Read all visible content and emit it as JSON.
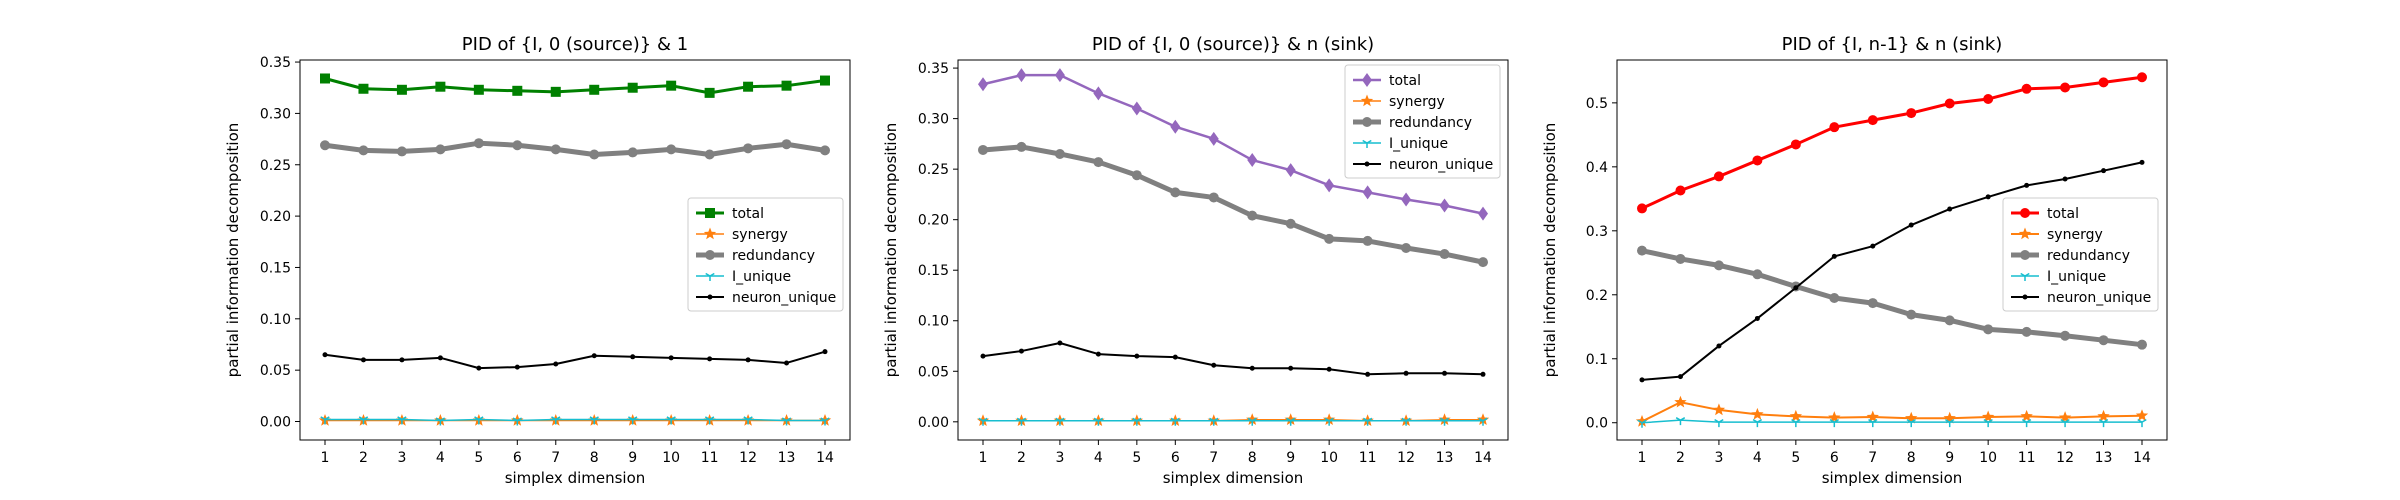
{
  "chart_data": [
    {
      "type": "line",
      "title": "PID of {I, 0 (source)} & 1",
      "xlabel": "simplex dimension",
      "ylabel": "partial information decomposition",
      "x": [
        1,
        2,
        3,
        4,
        5,
        6,
        7,
        8,
        9,
        10,
        11,
        12,
        13,
        14
      ],
      "xticks": [
        "1",
        "2",
        "3",
        "4",
        "5",
        "6",
        "7",
        "8",
        "9",
        "10",
        "11",
        "12",
        "13",
        "14"
      ],
      "ylim": [
        -0.018,
        0.352
      ],
      "yticks": [
        0,
        0.05,
        0.1,
        0.15,
        0.2,
        0.25,
        0.3,
        0.35
      ],
      "yticklabels": [
        "0.00",
        "0.05",
        "0.10",
        "0.15",
        "0.20",
        "0.25",
        "0.30",
        "0.35"
      ],
      "grid": false,
      "legend_position": "center-right",
      "series": [
        {
          "name": "total",
          "color": "#008000",
          "marker": "square",
          "width": 3,
          "values": [
            0.334,
            0.324,
            0.323,
            0.326,
            0.323,
            0.322,
            0.321,
            0.323,
            0.325,
            0.327,
            0.32,
            0.326,
            0.327,
            0.332
          ]
        },
        {
          "name": "synergy",
          "color": "#ff7f0e",
          "marker": "star",
          "width": 1.5,
          "values": [
            0.001,
            0.001,
            0.001,
            0.001,
            0.001,
            0.001,
            0.001,
            0.001,
            0.001,
            0.001,
            0.001,
            0.001,
            0.001,
            0.001
          ]
        },
        {
          "name": "redundancy",
          "color": "#808080",
          "marker": "circle",
          "width": 5,
          "values": [
            0.269,
            0.264,
            0.263,
            0.265,
            0.271,
            0.269,
            0.265,
            0.26,
            0.262,
            0.265,
            0.26,
            0.266,
            0.27,
            0.264
          ]
        },
        {
          "name": "I_unique",
          "color": "#17becf",
          "marker": "tri",
          "width": 1.5,
          "values": [
            0.002,
            0.002,
            0.002,
            0.001,
            0.002,
            0.001,
            0.002,
            0.002,
            0.002,
            0.002,
            0.002,
            0.002,
            0.001,
            0.001
          ]
        },
        {
          "name": "neuron_unique",
          "color": "#000000",
          "marker": "dot",
          "width": 2,
          "values": [
            0.065,
            0.06,
            0.06,
            0.062,
            0.052,
            0.053,
            0.056,
            0.064,
            0.063,
            0.062,
            0.061,
            0.06,
            0.057,
            0.068
          ]
        }
      ]
    },
    {
      "type": "line",
      "title": "PID of {I, 0 (source)} & n (sink)",
      "xlabel": "simplex dimension",
      "ylabel": "partial information decomposition",
      "x": [
        1,
        2,
        3,
        4,
        5,
        6,
        7,
        8,
        9,
        10,
        11,
        12,
        13,
        14
      ],
      "xticks": [
        "1",
        "2",
        "3",
        "4",
        "5",
        "6",
        "7",
        "8",
        "9",
        "10",
        "11",
        "12",
        "13",
        "14"
      ],
      "ylim": [
        -0.018,
        0.358
      ],
      "yticks": [
        0,
        0.05,
        0.1,
        0.15,
        0.2,
        0.25,
        0.3,
        0.35
      ],
      "yticklabels": [
        "0.00",
        "0.05",
        "0.10",
        "0.15",
        "0.20",
        "0.25",
        "0.30",
        "0.35"
      ],
      "grid": false,
      "legend_position": "top-right",
      "series": [
        {
          "name": "total",
          "color": "#9467bd",
          "marker": "diamond",
          "width": 2.5,
          "values": [
            0.334,
            0.343,
            0.343,
            0.325,
            0.31,
            0.292,
            0.28,
            0.259,
            0.249,
            0.234,
            0.227,
            0.22,
            0.214,
            0.206
          ]
        },
        {
          "name": "synergy",
          "color": "#ff7f0e",
          "marker": "star",
          "width": 1.5,
          "values": [
            0.001,
            0.001,
            0.001,
            0.001,
            0.001,
            0.001,
            0.001,
            0.002,
            0.002,
            0.002,
            0.001,
            0.001,
            0.002,
            0.002
          ]
        },
        {
          "name": "redundancy",
          "color": "#808080",
          "marker": "circle",
          "width": 5,
          "values": [
            0.269,
            0.272,
            0.265,
            0.257,
            0.244,
            0.227,
            0.222,
            0.204,
            0.196,
            0.181,
            0.179,
            0.172,
            0.166,
            0.158
          ]
        },
        {
          "name": "I_unique",
          "color": "#17becf",
          "marker": "tri",
          "width": 1.5,
          "values": [
            0.001,
            0.001,
            0.001,
            0.001,
            0.001,
            0.001,
            0.001,
            0.001,
            0.001,
            0.001,
            0.001,
            0.001,
            0.001,
            0.001
          ]
        },
        {
          "name": "neuron_unique",
          "color": "#000000",
          "marker": "dot",
          "width": 2,
          "values": [
            0.065,
            0.07,
            0.078,
            0.067,
            0.065,
            0.064,
            0.056,
            0.053,
            0.053,
            0.052,
            0.047,
            0.048,
            0.048,
            0.047
          ]
        }
      ]
    },
    {
      "type": "line",
      "title": "PID of {I, n-1} & n (sink)",
      "xlabel": "simplex dimension",
      "ylabel": "partial information decomposition",
      "x": [
        1,
        2,
        3,
        4,
        5,
        6,
        7,
        8,
        9,
        10,
        11,
        12,
        13,
        14
      ],
      "xticks": [
        "1",
        "2",
        "3",
        "4",
        "5",
        "6",
        "7",
        "8",
        "9",
        "10",
        "11",
        "12",
        "13",
        "14"
      ],
      "ylim": [
        -0.027,
        0.567
      ],
      "yticks": [
        0,
        0.1,
        0.2,
        0.3,
        0.4,
        0.5
      ],
      "yticklabels": [
        "0.0",
        "0.1",
        "0.2",
        "0.3",
        "0.4",
        "0.5"
      ],
      "grid": false,
      "legend_position": "center-right",
      "series": [
        {
          "name": "total",
          "color": "#ff0000",
          "marker": "circle",
          "width": 3,
          "values": [
            0.335,
            0.363,
            0.385,
            0.41,
            0.435,
            0.462,
            0.473,
            0.484,
            0.499,
            0.506,
            0.522,
            0.524,
            0.532,
            0.54
          ]
        },
        {
          "name": "synergy",
          "color": "#ff7f0e",
          "marker": "star",
          "width": 2,
          "values": [
            0.002,
            0.032,
            0.02,
            0.013,
            0.01,
            0.008,
            0.009,
            0.007,
            0.007,
            0.009,
            0.01,
            0.008,
            0.01,
            0.011
          ]
        },
        {
          "name": "redundancy",
          "color": "#808080",
          "marker": "circle",
          "width": 5,
          "values": [
            0.269,
            0.256,
            0.246,
            0.232,
            0.213,
            0.195,
            0.187,
            0.169,
            0.16,
            0.146,
            0.142,
            0.136,
            0.129,
            0.122
          ]
        },
        {
          "name": "I_unique",
          "color": "#17becf",
          "marker": "tri",
          "width": 1.5,
          "values": [
            0.0,
            0.004,
            0.001,
            0.001,
            0.001,
            0.001,
            0.001,
            0.001,
            0.001,
            0.001,
            0.001,
            0.001,
            0.001,
            0.001
          ]
        },
        {
          "name": "neuron_unique",
          "color": "#000000",
          "marker": "dot",
          "width": 2,
          "values": [
            0.067,
            0.072,
            0.12,
            0.163,
            0.211,
            0.26,
            0.276,
            0.309,
            0.334,
            0.353,
            0.371,
            0.381,
            0.394,
            0.407
          ]
        }
      ]
    }
  ]
}
